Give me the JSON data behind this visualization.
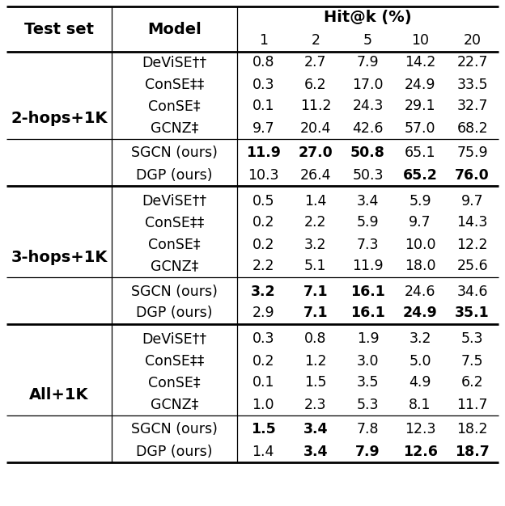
{
  "sections": [
    {
      "test_set": "2-hops+1K",
      "baselines": [
        {
          "model": "DeViSE††",
          "values": [
            "0.8",
            "2.7",
            "7.9",
            "14.2",
            "22.7"
          ],
          "bold": [
            false,
            false,
            false,
            false,
            false
          ]
        },
        {
          "model": "ConSE‡‡",
          "values": [
            "0.3",
            "6.2",
            "17.0",
            "24.9",
            "33.5"
          ],
          "bold": [
            false,
            false,
            false,
            false,
            false
          ]
        },
        {
          "model": "ConSE‡",
          "values": [
            "0.1",
            "11.2",
            "24.3",
            "29.1",
            "32.7"
          ],
          "bold": [
            false,
            false,
            false,
            false,
            false
          ]
        },
        {
          "model": "GCNZ‡",
          "values": [
            "9.7",
            "20.4",
            "42.6",
            "57.0",
            "68.2"
          ],
          "bold": [
            false,
            false,
            false,
            false,
            false
          ]
        }
      ],
      "ours": [
        {
          "model": "SGCN (ours)",
          "values": [
            "11.9",
            "27.0",
            "50.8",
            "65.1",
            "75.9"
          ],
          "bold": [
            true,
            true,
            true,
            false,
            false
          ]
        },
        {
          "model": "DGP (ours)",
          "values": [
            "10.3",
            "26.4",
            "50.3",
            "65.2",
            "76.0"
          ],
          "bold": [
            false,
            false,
            false,
            true,
            true
          ]
        }
      ]
    },
    {
      "test_set": "3-hops+1K",
      "baselines": [
        {
          "model": "DeViSE††",
          "values": [
            "0.5",
            "1.4",
            "3.4",
            "5.9",
            "9.7"
          ],
          "bold": [
            false,
            false,
            false,
            false,
            false
          ]
        },
        {
          "model": "ConSE‡‡",
          "values": [
            "0.2",
            "2.2",
            "5.9",
            "9.7",
            "14.3"
          ],
          "bold": [
            false,
            false,
            false,
            false,
            false
          ]
        },
        {
          "model": "ConSE‡",
          "values": [
            "0.2",
            "3.2",
            "7.3",
            "10.0",
            "12.2"
          ],
          "bold": [
            false,
            false,
            false,
            false,
            false
          ]
        },
        {
          "model": "GCNZ‡",
          "values": [
            "2.2",
            "5.1",
            "11.9",
            "18.0",
            "25.6"
          ],
          "bold": [
            false,
            false,
            false,
            false,
            false
          ]
        }
      ],
      "ours": [
        {
          "model": "SGCN (ours)",
          "values": [
            "3.2",
            "7.1",
            "16.1",
            "24.6",
            "34.6"
          ],
          "bold": [
            true,
            true,
            true,
            false,
            false
          ]
        },
        {
          "model": "DGP (ours)",
          "values": [
            "2.9",
            "7.1",
            "16.1",
            "24.9",
            "35.1"
          ],
          "bold": [
            false,
            true,
            true,
            true,
            true
          ]
        }
      ]
    },
    {
      "test_set": "All+1K",
      "baselines": [
        {
          "model": "DeViSE††",
          "values": [
            "0.3",
            "0.8",
            "1.9",
            "3.2",
            "5.3"
          ],
          "bold": [
            false,
            false,
            false,
            false,
            false
          ]
        },
        {
          "model": "ConSE‡‡",
          "values": [
            "0.2",
            "1.2",
            "3.0",
            "5.0",
            "7.5"
          ],
          "bold": [
            false,
            false,
            false,
            false,
            false
          ]
        },
        {
          "model": "ConSE‡",
          "values": [
            "0.1",
            "1.5",
            "3.5",
            "4.9",
            "6.2"
          ],
          "bold": [
            false,
            false,
            false,
            false,
            false
          ]
        },
        {
          "model": "GCNZ‡",
          "values": [
            "1.0",
            "2.3",
            "5.3",
            "8.1",
            "11.7"
          ],
          "bold": [
            false,
            false,
            false,
            false,
            false
          ]
        }
      ],
      "ours": [
        {
          "model": "SGCN (ours)",
          "values": [
            "1.5",
            "3.4",
            "7.8",
            "12.3",
            "18.2"
          ],
          "bold": [
            true,
            true,
            false,
            false,
            false
          ]
        },
        {
          "model": "DGP (ours)",
          "values": [
            "1.4",
            "3.4",
            "7.9",
            "12.6",
            "18.7"
          ],
          "bold": [
            false,
            true,
            true,
            true,
            true
          ]
        }
      ]
    }
  ],
  "col_headers_k": [
    "1",
    "2",
    "5",
    "10",
    "20"
  ],
  "hit_label": "Hit@k (%)",
  "test_set_label": "Test set",
  "model_label": "Model",
  "figw": 6.24,
  "figh": 6.26,
  "dpi": 100
}
